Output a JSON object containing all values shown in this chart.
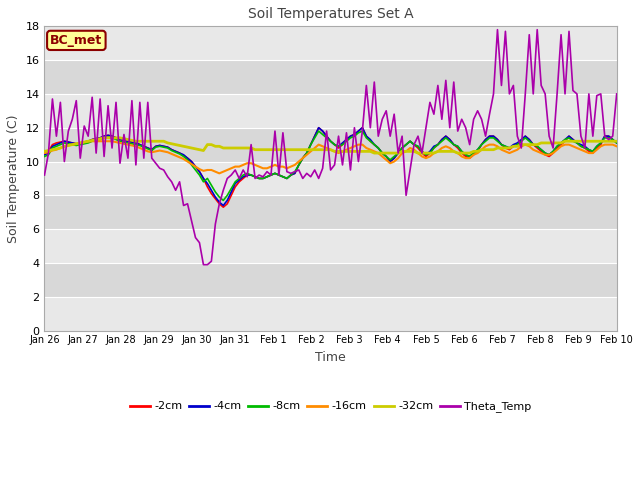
{
  "title": "Soil Temperatures Set A",
  "xlabel": "Time",
  "ylabel": "Soil Temperature (C)",
  "ylim": [
    0,
    18
  ],
  "yticks": [
    0,
    2,
    4,
    6,
    8,
    10,
    12,
    14,
    16,
    18
  ],
  "xtick_labels": [
    "Jan 26",
    "Jan 27",
    "Jan 28",
    "Jan 29",
    "Jan 30",
    "Jan 31",
    "Feb 1",
    "Feb 2",
    "Feb 3",
    "Feb 4",
    "Feb 5",
    "Feb 6",
    "Feb 7",
    "Feb 8",
    "Feb 9",
    "Feb 10"
  ],
  "annotation_text": "BC_met",
  "annotation_facecolor": "#FFFF99",
  "annotation_edgecolor": "#8B0000",
  "annotation_textcolor": "#8B0000",
  "colors": {
    "-2cm": "#FF0000",
    "-4cm": "#0000CC",
    "-8cm": "#00BB00",
    "-16cm": "#FF8C00",
    "-32cm": "#CCCC00",
    "Theta_Temp": "#AA00AA"
  },
  "fig_bg": "#FFFFFF",
  "plot_bg_even": "#E8E8E8",
  "plot_bg_odd": "#F0F0F0",
  "t_2cm": [
    10.5,
    10.6,
    11.0,
    11.1,
    11.15,
    11.2,
    11.15,
    11.1,
    11.05,
    11.1,
    11.15,
    11.2,
    11.3,
    11.35,
    11.4,
    11.5,
    11.55,
    11.5,
    11.4,
    11.3,
    11.25,
    11.2,
    11.15,
    11.1,
    11.0,
    10.9,
    10.8,
    10.7,
    10.9,
    10.95,
    10.9,
    10.85,
    10.7,
    10.6,
    10.5,
    10.35,
    10.2,
    10.0,
    9.7,
    9.4,
    9.0,
    8.5,
    8.1,
    7.8,
    7.5,
    7.3,
    7.5,
    8.0,
    8.5,
    8.8,
    9.0,
    9.2,
    9.2,
    9.1,
    9.0,
    9.0,
    9.1,
    9.2,
    9.3,
    9.2,
    9.1,
    9.0,
    9.2,
    9.3,
    9.8,
    10.2,
    10.5,
    11.0,
    11.5,
    12.0,
    11.8,
    11.5,
    11.2,
    11.0,
    10.8,
    11.0,
    11.3,
    11.5,
    11.6,
    11.8,
    12.0,
    11.5,
    11.2,
    11.0,
    10.8,
    10.5,
    10.3,
    10.0,
    10.2,
    10.5,
    10.8,
    11.0,
    11.2,
    11.0,
    10.8,
    10.5,
    10.3,
    10.5,
    10.8,
    11.0,
    11.3,
    11.5,
    11.3,
    11.0,
    10.8,
    10.5,
    10.3,
    10.2,
    10.4,
    10.6,
    11.0,
    11.3,
    11.5,
    11.5,
    11.3,
    11.0,
    10.8,
    10.7,
    10.9,
    11.0,
    11.2,
    11.5,
    11.3,
    11.0,
    10.8,
    10.6,
    10.4,
    10.3,
    10.5,
    10.8,
    11.0,
    11.2,
    11.5,
    11.3,
    11.1,
    10.9,
    10.8,
    10.6,
    10.5,
    10.8,
    11.0,
    11.5,
    11.5,
    11.3,
    11.1
  ],
  "t_4cm": [
    10.4,
    10.5,
    10.9,
    11.0,
    11.1,
    11.2,
    11.15,
    11.1,
    11.05,
    11.1,
    11.15,
    11.2,
    11.3,
    11.35,
    11.4,
    11.5,
    11.55,
    11.5,
    11.4,
    11.3,
    11.25,
    11.2,
    11.15,
    11.1,
    11.0,
    10.9,
    10.8,
    10.7,
    10.9,
    10.95,
    10.9,
    10.85,
    10.7,
    10.6,
    10.5,
    10.4,
    10.2,
    10.0,
    9.7,
    9.4,
    9.0,
    8.7,
    8.3,
    7.9,
    7.6,
    7.4,
    7.7,
    8.2,
    8.7,
    8.9,
    9.1,
    9.2,
    9.2,
    9.1,
    9.0,
    9.0,
    9.1,
    9.2,
    9.3,
    9.2,
    9.1,
    9.0,
    9.2,
    9.3,
    9.8,
    10.2,
    10.5,
    11.0,
    11.5,
    12.0,
    11.8,
    11.5,
    11.2,
    11.0,
    10.9,
    11.1,
    11.3,
    11.5,
    11.6,
    11.8,
    12.0,
    11.5,
    11.3,
    11.0,
    10.8,
    10.5,
    10.3,
    10.0,
    10.2,
    10.5,
    10.8,
    11.0,
    11.2,
    11.0,
    10.9,
    10.6,
    10.4,
    10.6,
    10.9,
    11.0,
    11.3,
    11.5,
    11.3,
    11.0,
    10.9,
    10.6,
    10.4,
    10.3,
    10.5,
    10.7,
    11.0,
    11.3,
    11.5,
    11.5,
    11.3,
    11.0,
    10.9,
    10.8,
    11.0,
    11.1,
    11.3,
    11.5,
    11.3,
    11.0,
    10.9,
    10.7,
    10.5,
    10.4,
    10.6,
    10.9,
    11.1,
    11.3,
    11.5,
    11.3,
    11.1,
    11.0,
    10.9,
    10.7,
    10.6,
    10.9,
    11.1,
    11.5,
    11.5,
    11.3,
    11.1
  ],
  "t_8cm": [
    10.3,
    10.4,
    10.8,
    10.9,
    11.0,
    11.1,
    11.05,
    11.0,
    10.95,
    11.0,
    11.05,
    11.1,
    11.2,
    11.25,
    11.3,
    11.4,
    11.45,
    11.4,
    11.3,
    11.2,
    11.15,
    11.1,
    11.05,
    11.0,
    10.95,
    10.85,
    10.75,
    10.65,
    10.85,
    10.9,
    10.85,
    10.8,
    10.65,
    10.55,
    10.45,
    10.3,
    10.1,
    9.8,
    9.5,
    9.2,
    8.8,
    9.0,
    8.6,
    8.2,
    7.9,
    7.7,
    8.0,
    8.4,
    8.8,
    9.0,
    9.2,
    9.3,
    9.2,
    9.1,
    9.0,
    9.0,
    9.1,
    9.2,
    9.3,
    9.2,
    9.1,
    9.0,
    9.2,
    9.4,
    9.8,
    10.2,
    10.5,
    11.0,
    11.4,
    11.8,
    11.6,
    11.4,
    11.2,
    11.0,
    10.9,
    11.0,
    11.2,
    11.4,
    11.5,
    11.7,
    11.8,
    11.4,
    11.2,
    11.0,
    10.8,
    10.5,
    10.3,
    10.1,
    10.3,
    10.5,
    10.8,
    11.0,
    11.2,
    11.0,
    10.9,
    10.6,
    10.4,
    10.5,
    10.8,
    11.0,
    11.2,
    11.4,
    11.2,
    11.0,
    10.9,
    10.6,
    10.4,
    10.3,
    10.5,
    10.7,
    11.0,
    11.2,
    11.4,
    11.4,
    11.2,
    11.0,
    10.9,
    10.8,
    10.9,
    11.0,
    11.2,
    11.4,
    11.2,
    11.0,
    10.9,
    10.7,
    10.5,
    10.4,
    10.6,
    10.9,
    11.1,
    11.3,
    11.4,
    11.2,
    11.1,
    10.9,
    10.8,
    10.7,
    10.6,
    10.9,
    11.1,
    11.4,
    11.4,
    11.3,
    11.1
  ],
  "t_16cm": [
    10.5,
    10.55,
    10.65,
    10.7,
    10.8,
    10.9,
    10.95,
    11.0,
    11.05,
    11.1,
    11.15,
    11.2,
    11.2,
    11.2,
    11.2,
    11.2,
    11.2,
    11.2,
    11.15,
    11.1,
    11.05,
    11.0,
    10.95,
    10.9,
    10.8,
    10.7,
    10.6,
    10.55,
    10.6,
    10.65,
    10.6,
    10.55,
    10.45,
    10.35,
    10.25,
    10.15,
    10.0,
    9.85,
    9.7,
    9.55,
    9.45,
    9.5,
    9.5,
    9.4,
    9.3,
    9.4,
    9.5,
    9.6,
    9.7,
    9.7,
    9.8,
    9.9,
    9.9,
    9.8,
    9.7,
    9.6,
    9.6,
    9.7,
    9.8,
    9.7,
    9.7,
    9.6,
    9.7,
    9.8,
    10.0,
    10.2,
    10.4,
    10.6,
    10.8,
    11.0,
    10.9,
    10.8,
    10.7,
    10.6,
    10.5,
    10.6,
    10.7,
    10.8,
    10.9,
    11.0,
    11.0,
    10.8,
    10.7,
    10.6,
    10.5,
    10.3,
    10.1,
    9.9,
    10.0,
    10.2,
    10.5,
    10.6,
    10.8,
    10.7,
    10.5,
    10.3,
    10.2,
    10.3,
    10.5,
    10.6,
    10.8,
    10.9,
    10.8,
    10.6,
    10.5,
    10.3,
    10.2,
    10.2,
    10.4,
    10.5,
    10.7,
    10.9,
    11.0,
    11.0,
    10.9,
    10.7,
    10.6,
    10.5,
    10.6,
    10.7,
    10.9,
    11.0,
    10.9,
    10.7,
    10.6,
    10.5,
    10.4,
    10.4,
    10.5,
    10.7,
    10.9,
    11.0,
    11.0,
    10.9,
    10.8,
    10.7,
    10.6,
    10.5,
    10.5,
    10.7,
    10.9,
    11.0,
    11.0,
    11.0,
    10.9
  ],
  "t_32cm": [
    10.6,
    10.65,
    10.7,
    10.75,
    10.8,
    10.9,
    10.95,
    11.0,
    11.05,
    11.1,
    11.15,
    11.2,
    11.25,
    11.3,
    11.35,
    11.4,
    11.4,
    11.4,
    11.4,
    11.4,
    11.35,
    11.3,
    11.25,
    11.2,
    11.2,
    11.2,
    11.2,
    11.2,
    11.2,
    11.2,
    11.2,
    11.1,
    11.05,
    11.0,
    10.95,
    10.9,
    10.85,
    10.8,
    10.75,
    10.7,
    10.65,
    11.0,
    11.0,
    10.9,
    10.9,
    10.8,
    10.8,
    10.8,
    10.8,
    10.8,
    10.8,
    10.8,
    10.8,
    10.7,
    10.7,
    10.7,
    10.7,
    10.7,
    10.7,
    10.7,
    10.7,
    10.7,
    10.7,
    10.7,
    10.7,
    10.7,
    10.7,
    10.7,
    10.7,
    10.7,
    10.7,
    10.7,
    10.7,
    10.6,
    10.6,
    10.6,
    10.6,
    10.6,
    10.6,
    10.6,
    10.6,
    10.6,
    10.6,
    10.5,
    10.5,
    10.5,
    10.5,
    10.5,
    10.5,
    10.5,
    10.6,
    10.6,
    10.6,
    10.6,
    10.5,
    10.5,
    10.5,
    10.5,
    10.5,
    10.6,
    10.6,
    10.6,
    10.6,
    10.6,
    10.5,
    10.5,
    10.5,
    10.5,
    10.6,
    10.6,
    10.7,
    10.7,
    10.7,
    10.7,
    10.8,
    10.8,
    10.8,
    10.8,
    10.9,
    10.9,
    11.0,
    11.0,
    11.0,
    11.0,
    11.0,
    11.1,
    11.1,
    11.1,
    11.1,
    11.1,
    11.1,
    11.2,
    11.2,
    11.2,
    11.2,
    11.2,
    11.2,
    11.2,
    11.2,
    11.2,
    11.2,
    11.2,
    11.2,
    11.2,
    11.2
  ],
  "theta": [
    9.2,
    10.5,
    13.7,
    11.5,
    13.5,
    10.0,
    11.8,
    12.5,
    13.6,
    10.2,
    12.1,
    11.5,
    13.8,
    10.5,
    13.7,
    10.3,
    13.3,
    10.8,
    13.5,
    9.9,
    11.6,
    10.2,
    13.6,
    9.8,
    13.5,
    10.2,
    13.5,
    10.2,
    9.9,
    9.6,
    9.5,
    9.1,
    8.8,
    8.3,
    8.8,
    7.4,
    7.5,
    6.5,
    5.5,
    5.2,
    3.9,
    3.9,
    4.1,
    6.3,
    7.5,
    8.3,
    9.0,
    9.2,
    9.5,
    9.0,
    9.5,
    9.1,
    11.0,
    9.0,
    9.2,
    9.1,
    9.4,
    9.2,
    11.8,
    9.2,
    11.7,
    9.4,
    9.3,
    9.4,
    9.5,
    9.0,
    9.3,
    9.1,
    9.5,
    9.0,
    9.6,
    11.8,
    9.5,
    9.8,
    11.5,
    9.8,
    11.7,
    9.5,
    12.0,
    10.0,
    11.8,
    14.5,
    12.0,
    14.7,
    11.5,
    12.5,
    13.0,
    11.5,
    12.8,
    10.5,
    11.5,
    8.0,
    9.5,
    11.0,
    11.5,
    10.5,
    12.0,
    13.5,
    12.8,
    14.5,
    12.5,
    14.8,
    12.0,
    14.7,
    11.8,
    12.5,
    12.0,
    11.0,
    12.5,
    13.0,
    12.5,
    11.5,
    12.8,
    14.0,
    17.8,
    14.5,
    17.7,
    14.0,
    14.5,
    11.5,
    10.8,
    14.0,
    17.5,
    14.0,
    17.8,
    14.5,
    14.0,
    11.5,
    10.8,
    14.0,
    17.5,
    14.0,
    17.7,
    14.2,
    14.0,
    11.5,
    10.8,
    14.0,
    11.5,
    13.9,
    14.0,
    11.5,
    11.3,
    11.5,
    14.0
  ]
}
